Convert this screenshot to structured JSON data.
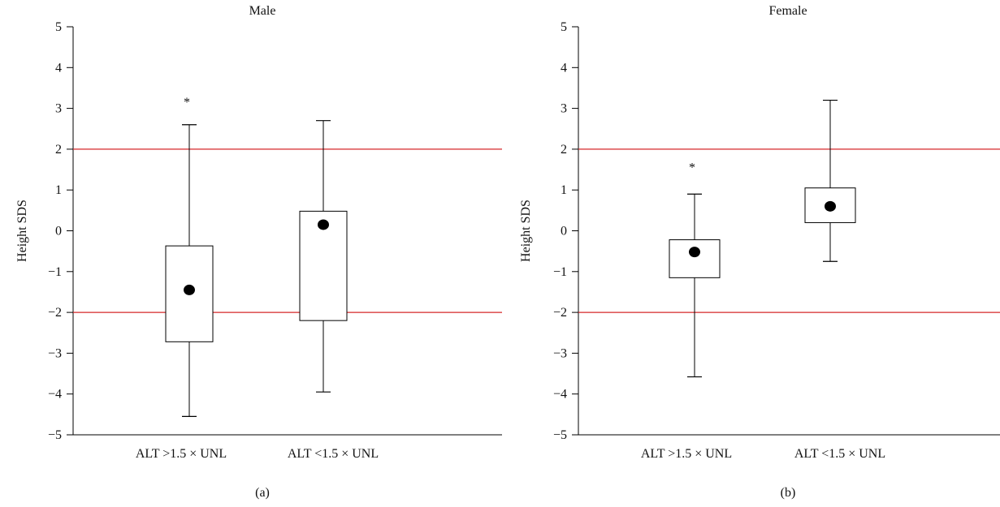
{
  "colors": {
    "reference_line": "#d62728",
    "box_stroke": "#000000",
    "mean_marker": "#000000"
  },
  "chart_data": [
    {
      "type": "box",
      "title": "Male",
      "panel_label": "(a)",
      "ylabel": "Height SDS",
      "ylim": [
        -5,
        5
      ],
      "yticks": [
        5,
        4,
        3,
        2,
        1,
        0,
        -1,
        -2,
        -3,
        -4,
        -5
      ],
      "ytick_labels": [
        "5",
        "4",
        "3",
        "2",
        "1",
        "0",
        "−1",
        "−2",
        "−3",
        "−4",
        "−5"
      ],
      "reference_lines": [
        2,
        -2
      ],
      "categories": [
        "ALT >1.5 × UNL",
        "ALT <1.5 × UNL"
      ],
      "boxes": [
        {
          "whisker_low": -4.55,
          "q1": -2.72,
          "q3": -0.37,
          "whisker_high": 2.6,
          "mean": -1.45,
          "marker": "*",
          "marker_value": 3.25
        },
        {
          "whisker_low": -3.95,
          "q1": -2.2,
          "q3": 0.48,
          "whisker_high": 2.7,
          "mean": 0.15
        }
      ]
    },
    {
      "type": "box",
      "title": "Female",
      "panel_label": "(b)",
      "ylabel": "Height SDS",
      "ylim": [
        -5,
        5
      ],
      "yticks": [
        5,
        4,
        3,
        2,
        1,
        0,
        -1,
        -2,
        -3,
        -4,
        -5
      ],
      "ytick_labels": [
        "5",
        "4",
        "3",
        "2",
        "1",
        "0",
        "−1",
        "−2",
        "−3",
        "−4",
        "−5"
      ],
      "reference_lines": [
        2,
        -2
      ],
      "categories": [
        "ALT >1.5 × UNL",
        "ALT <1.5 × UNL"
      ],
      "boxes": [
        {
          "whisker_low": -3.58,
          "q1": -1.15,
          "q3": -0.22,
          "whisker_high": 0.9,
          "mean": -0.52,
          "marker": "*",
          "marker_value": 1.65
        },
        {
          "whisker_low": -0.75,
          "q1": 0.2,
          "q3": 1.05,
          "whisker_high": 3.2,
          "mean": 0.6
        }
      ]
    }
  ]
}
